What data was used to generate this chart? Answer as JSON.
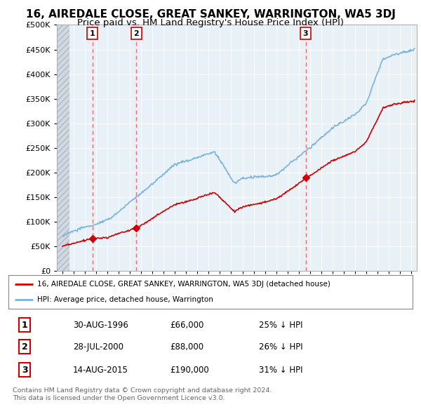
{
  "title": "16, AIREDALE CLOSE, GREAT SANKEY, WARRINGTON, WA5 3DJ",
  "subtitle": "Price paid vs. HM Land Registry's House Price Index (HPI)",
  "title_fontsize": 11,
  "subtitle_fontsize": 9.5,
  "legend_line1": "16, AIREDALE CLOSE, GREAT SANKEY, WARRINGTON, WA5 3DJ (detached house)",
  "legend_line2": "HPI: Average price, detached house, Warrington",
  "sale_dates": [
    1996.66,
    2000.57,
    2015.62
  ],
  "sale_prices": [
    66000,
    88000,
    190000
  ],
  "sale_labels": [
    "1",
    "2",
    "3"
  ],
  "hpi_color": "#7ab4d8",
  "sale_color": "#cc0000",
  "vline_color": "#e87070",
  "footer_text": "Contains HM Land Registry data © Crown copyright and database right 2024.\nThis data is licensed under the Open Government Licence v3.0.",
  "table_data": [
    [
      "1",
      "30-AUG-1996",
      "£66,000",
      "25% ↓ HPI"
    ],
    [
      "2",
      "28-JUL-2000",
      "£88,000",
      "26% ↓ HPI"
    ],
    [
      "3",
      "14-AUG-2015",
      "£190,000",
      "31% ↓ HPI"
    ]
  ],
  "xmin": 1994,
  "xmax": 2025.5,
  "ymin": 0,
  "ymax": 500000,
  "background_color": "#ffffff",
  "plot_bg_color": "#e8f0f8"
}
